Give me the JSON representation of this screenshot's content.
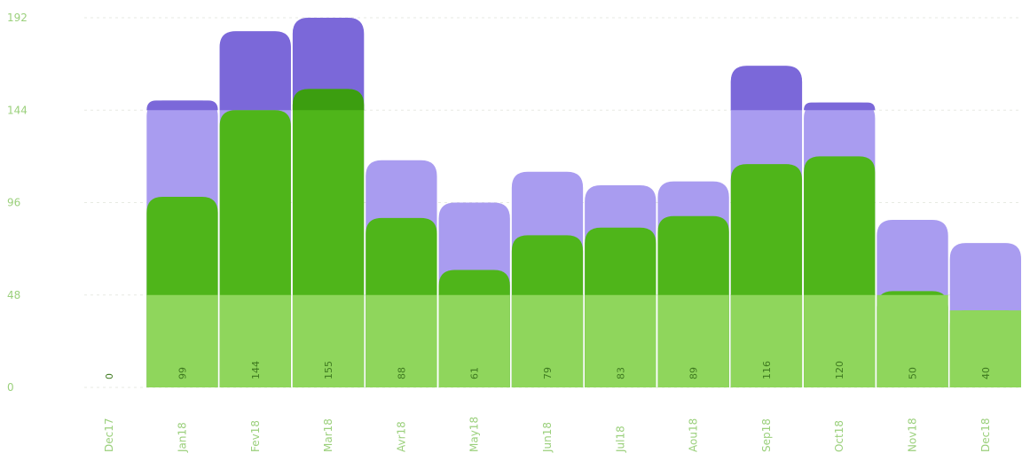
{
  "chart_data": {
    "type": "bar",
    "categories": [
      "Dec17",
      "Jan18",
      "Fev18",
      "Mar18",
      "Avr18",
      "May18",
      "Jun18",
      "Jul18",
      "Aou18",
      "Sep18",
      "Oct18",
      "Nov18",
      "Dec18"
    ],
    "series": [
      {
        "values": [
          0,
          149,
          185,
          192,
          118,
          96,
          112,
          105,
          107,
          167,
          148,
          87,
          75
        ],
        "color": "#8f7fe0"
      },
      {
        "values": [
          0,
          99,
          144,
          155,
          88,
          61,
          79,
          83,
          89,
          116,
          120,
          50,
          40
        ],
        "color": "#55b51a"
      }
    ],
    "data_labels": [
      "0",
      "99",
      "144",
      "155",
      "88",
      "61",
      "79",
      "83",
      "89",
      "116",
      "120",
      "50",
      "40"
    ],
    "yticks": [
      "0",
      "48",
      "96",
      "144",
      "192"
    ],
    "ylim": [
      0,
      192
    ],
    "grid": true,
    "legend": "none"
  }
}
